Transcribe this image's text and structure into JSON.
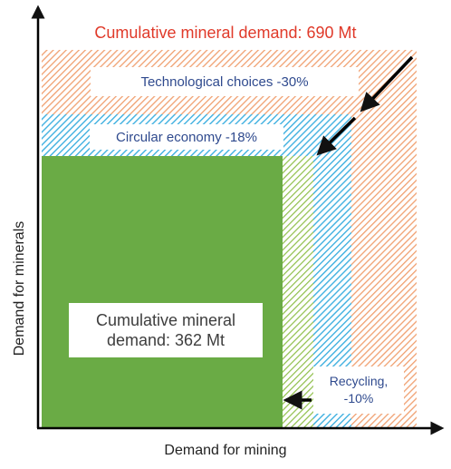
{
  "diagram": {
    "title": "Cumulative mineral demand: 690 Mt",
    "layers": {
      "technological_choices": "Technological choices -30%",
      "circular_economy": "Circular economy -18%",
      "recycling_line1": "Recycling,",
      "recycling_line2": "-10%"
    },
    "final_demand_line1": "Cumulative mineral",
    "final_demand_line2": "demand: 362 Mt",
    "axes": {
      "x_label": "Demand for mining",
      "y_label": "Demand for minerals"
    },
    "colors": {
      "title": "#e03a2a",
      "layer_text": "#2f4a8e",
      "technological_hatch": "#f0a070",
      "circular_hatch": "#3fb0e0",
      "recycling_hatch": "#8fbf4a",
      "final_fill": "#6aab45"
    }
  }
}
